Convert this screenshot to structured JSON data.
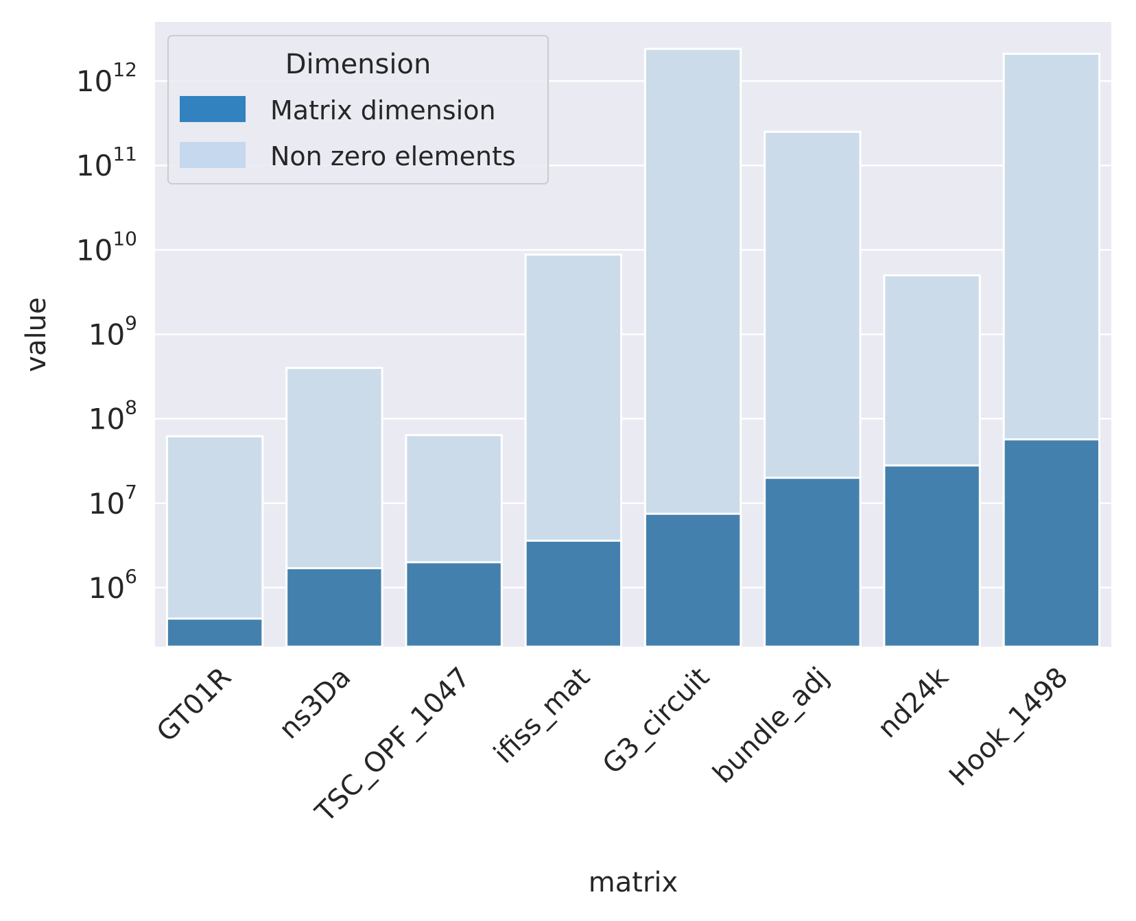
{
  "chart_data": {
    "type": "bar",
    "xlabel": "matrix",
    "ylabel": "value",
    "yscale": "log",
    "ylim": [
      200000,
      5000000000000
    ],
    "grid": true,
    "legend": {
      "title": "Dimension",
      "position": "top-left",
      "entries": [
        "Matrix dimension",
        "Non zero elements"
      ]
    },
    "categories": [
      "GT01R",
      "ns3Da",
      "TSC_OPF_1047",
      "ifiss_mat",
      "G3_circuit",
      "bundle_adj",
      "nd24k",
      "Hook_1498"
    ],
    "series": [
      {
        "name": "Non zero elements",
        "color": "#cbdbe9",
        "values": [
          62000000,
          400000000,
          64000000,
          8800000000,
          2400000000000,
          250000000000,
          5000000000,
          2100000000000
        ]
      },
      {
        "name": "Matrix dimension",
        "color": "#4480ad",
        "values": [
          430000,
          1700000,
          2000000,
          3600000,
          7500000,
          20000000,
          28000000,
          57000000
        ]
      }
    ],
    "legend_swatch_colors": [
      "#3282bf",
      "#c6d8ed"
    ],
    "yticks": [
      {
        "base": "10",
        "exp": "6"
      },
      {
        "base": "10",
        "exp": "7"
      },
      {
        "base": "10",
        "exp": "8"
      },
      {
        "base": "10",
        "exp": "9"
      },
      {
        "base": "10",
        "exp": "10"
      },
      {
        "base": "10",
        "exp": "11"
      },
      {
        "base": "10",
        "exp": "12"
      }
    ]
  }
}
